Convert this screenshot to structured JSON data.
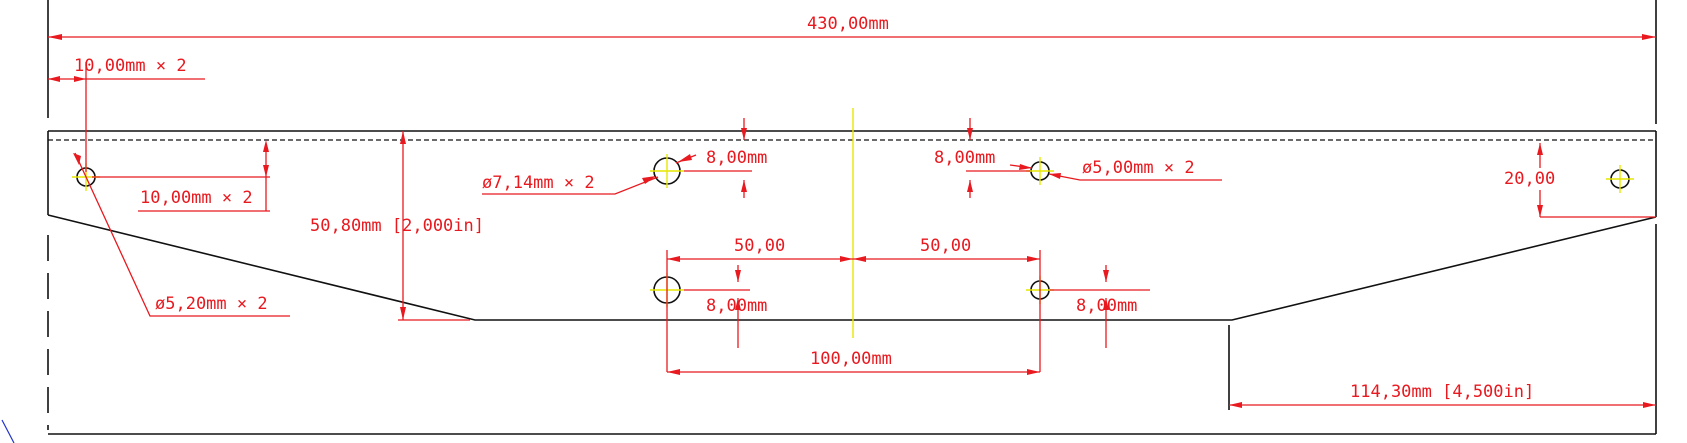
{
  "drawing": {
    "dimensions": {
      "overall_length": "430,00mm",
      "edge_offset_x": "10,00mm × 2",
      "edge_offset_y": "10,00mm × 2",
      "hole_dia_small": "ø5,20mm × 2",
      "height": "50,80mm [2,000in]",
      "hole_dia_714": "ø7,14mm × 2",
      "hole_offset_left_top": "8,00mm",
      "hole_offset_right_top": "8,00mm",
      "hole_dia_5": "ø5,00mm × 2",
      "right_hole_height": "20,00",
      "spacing_left": "50,00",
      "spacing_right": "50,00",
      "hole_offset_left_bottom": "8,00mm",
      "hole_offset_right_bottom": "8,00mm",
      "spacing_total": "100,00mm",
      "taper_length": "114,30mm [4,500in]"
    }
  }
}
